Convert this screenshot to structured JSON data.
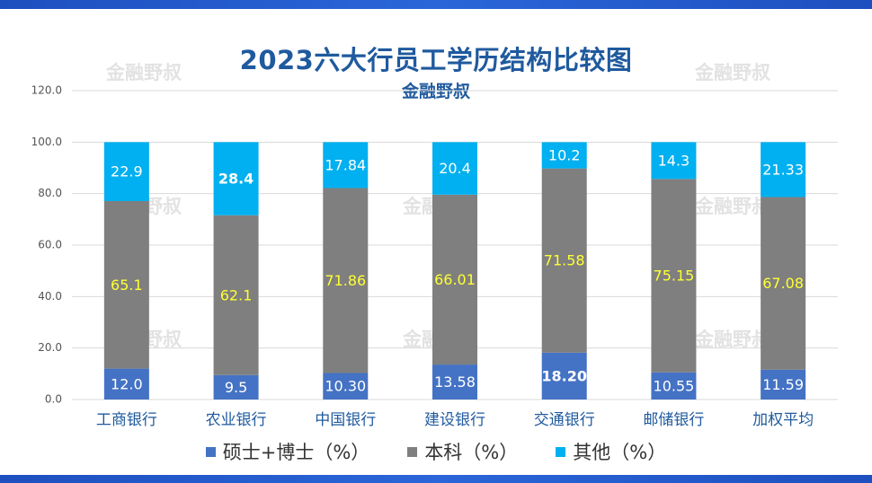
{
  "chart_data": {
    "type": "bar",
    "stacked": true,
    "title": "2023六大行员工学历结构比较图",
    "subtitle": "金融野叔",
    "watermark": "金融野叔",
    "categories": [
      "工商银行",
      "农业银行",
      "中国银行",
      "建设银行",
      "交通银行",
      "邮储银行",
      "加权平均"
    ],
    "series": [
      {
        "name": "硕士+博士（%）",
        "color": "#4472c4",
        "label_color": "#ffffff",
        "values": [
          12.0,
          9.5,
          10.3,
          13.58,
          18.2,
          10.55,
          11.59
        ],
        "labels": [
          "12.0",
          "9.5",
          "10.30",
          "13.58",
          "18.20",
          "10.55",
          "11.59"
        ],
        "bold_labels": [
          false,
          false,
          false,
          false,
          true,
          false,
          false
        ]
      },
      {
        "name": "本科（%）",
        "color": "#7f7f7f",
        "label_color": "#ffff33",
        "values": [
          65.1,
          62.1,
          71.86,
          66.01,
          71.58,
          75.15,
          67.08
        ],
        "labels": [
          "65.1",
          "62.1",
          "71.86",
          "66.01",
          "71.58",
          "75.15",
          "67.08"
        ],
        "bold_labels": [
          false,
          false,
          false,
          false,
          false,
          false,
          false
        ]
      },
      {
        "name": "其他（%）",
        "color": "#00b0f0",
        "label_color": "#ffffff",
        "values": [
          22.9,
          28.4,
          17.84,
          20.4,
          10.2,
          14.3,
          21.33
        ],
        "labels": [
          "22.9",
          "28.4",
          "17.84",
          "20.4",
          "10.2",
          "14.3",
          "21.33"
        ],
        "bold_labels": [
          false,
          true,
          false,
          false,
          false,
          false,
          false
        ]
      }
    ],
    "ylim": [
      0,
      120
    ],
    "yticks": [
      "0.0",
      "20.0",
      "40.0",
      "60.0",
      "80.0",
      "100.0",
      "120.0"
    ],
    "ytick_values": [
      0,
      20,
      40,
      60,
      80,
      100,
      120
    ],
    "grid": true,
    "legend_position": "bottom",
    "colors": {
      "axis_text": "#555555",
      "category_text": "#1f5a9e",
      "grid": "#d9d9d9",
      "title": "#1f5a9e",
      "watermark": "#d9d9d9"
    }
  }
}
